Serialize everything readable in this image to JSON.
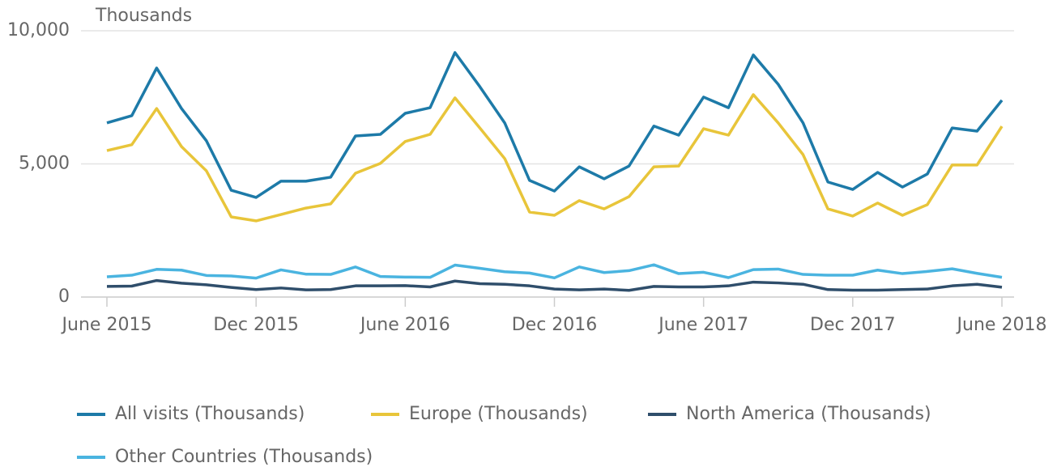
{
  "chart_data": {
    "type": "line",
    "y_label": "Thousands",
    "categories": [
      "June 2015",
      null,
      null,
      null,
      null,
      null,
      "Dec 2015",
      null,
      null,
      null,
      null,
      null,
      "June 2016",
      null,
      null,
      null,
      null,
      null,
      "Dec 2016",
      null,
      null,
      null,
      null,
      null,
      "June 2017",
      null,
      null,
      null,
      null,
      null,
      "Dec 2017",
      null,
      null,
      null,
      null,
      null,
      "June 2018"
    ],
    "ylim": [
      0,
      10000
    ],
    "yticks": [
      0,
      {
        "value": 5000,
        "label": "5,000"
      },
      {
        "value": 10000,
        "label": "10,000"
      }
    ],
    "grid": true,
    "legend": "bottom",
    "series": [
      {
        "name": "All visits (Thousands)",
        "color": "#1d7aa8",
        "values": [
          6540,
          6810,
          8600,
          7080,
          5870,
          4010,
          3740,
          4350,
          4350,
          4500,
          6050,
          6110,
          6900,
          7110,
          9180,
          7900,
          6540,
          4380,
          3980,
          4890,
          4440,
          4920,
          6420,
          6080,
          7510,
          7110,
          9090,
          7990,
          6540,
          4320,
          4040,
          4680,
          4130,
          4620,
          6350,
          6230,
          7390
        ]
      },
      {
        "name": "Europe (Thousands)",
        "color": "#e8c53a",
        "values": [
          5500,
          5720,
          7080,
          5650,
          4740,
          3010,
          2860,
          3100,
          3340,
          3500,
          4650,
          5020,
          5840,
          6110,
          7480,
          6350,
          5200,
          3190,
          3070,
          3620,
          3310,
          3770,
          4890,
          4920,
          6320,
          6080,
          7600,
          6540,
          5350,
          3310,
          3040,
          3530,
          3070,
          3470,
          4960,
          4960,
          6410
        ]
      },
      {
        "name": "North America (Thousands)",
        "color": "#2f4e6b",
        "values": [
          400,
          410,
          620,
          520,
          460,
          360,
          280,
          340,
          270,
          280,
          420,
          420,
          430,
          380,
          600,
          500,
          480,
          420,
          300,
          270,
          300,
          250,
          400,
          380,
          380,
          420,
          560,
          530,
          480,
          280,
          260,
          260,
          280,
          300,
          420,
          480,
          370
        ]
      },
      {
        "name": "Other Countries (Thousands)",
        "color": "#4ab4e0",
        "values": [
          760,
          820,
          1040,
          1010,
          810,
          790,
          710,
          1020,
          860,
          850,
          1130,
          770,
          750,
          740,
          1200,
          1080,
          950,
          900,
          720,
          1130,
          920,
          990,
          1210,
          880,
          930,
          730,
          1030,
          1050,
          850,
          820,
          820,
          1010,
          880,
          960,
          1060,
          890,
          740
        ]
      }
    ]
  }
}
